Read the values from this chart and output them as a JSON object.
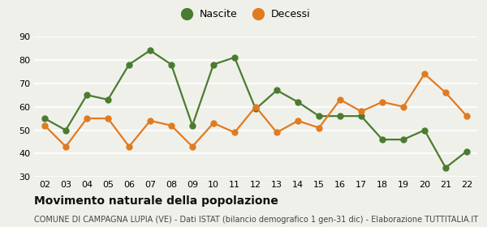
{
  "years": [
    "02",
    "03",
    "04",
    "05",
    "06",
    "07",
    "08",
    "09",
    "10",
    "11",
    "12",
    "13",
    "14",
    "15",
    "16",
    "17",
    "18",
    "19",
    "20",
    "21",
    "22"
  ],
  "nascite": [
    55,
    50,
    65,
    63,
    78,
    84,
    78,
    52,
    78,
    81,
    59,
    67,
    62,
    56,
    56,
    56,
    46,
    46,
    50,
    34,
    41
  ],
  "decessi": [
    52,
    43,
    55,
    55,
    43,
    54,
    52,
    43,
    53,
    49,
    60,
    49,
    54,
    51,
    63,
    58,
    62,
    60,
    74,
    66,
    56
  ],
  "nascite_color": "#4a7c2f",
  "decessi_color": "#e07b20",
  "bg_color": "#f0f0eb",
  "grid_color": "#ffffff",
  "ylim": [
    30,
    90
  ],
  "yticks": [
    30,
    40,
    50,
    60,
    70,
    80,
    90
  ],
  "title": "Movimento naturale della popolazione",
  "subtitle": "COMUNE DI CAMPAGNA LUPIA (VE) - Dati ISTAT (bilancio demografico 1 gen-31 dic) - Elaborazione TUTTITALIA.IT",
  "legend_nascite": "Nascite",
  "legend_decessi": "Decessi",
  "title_fontsize": 10,
  "subtitle_fontsize": 7,
  "tick_fontsize": 8,
  "legend_fontsize": 9,
  "marker_size": 5,
  "line_width": 1.6
}
